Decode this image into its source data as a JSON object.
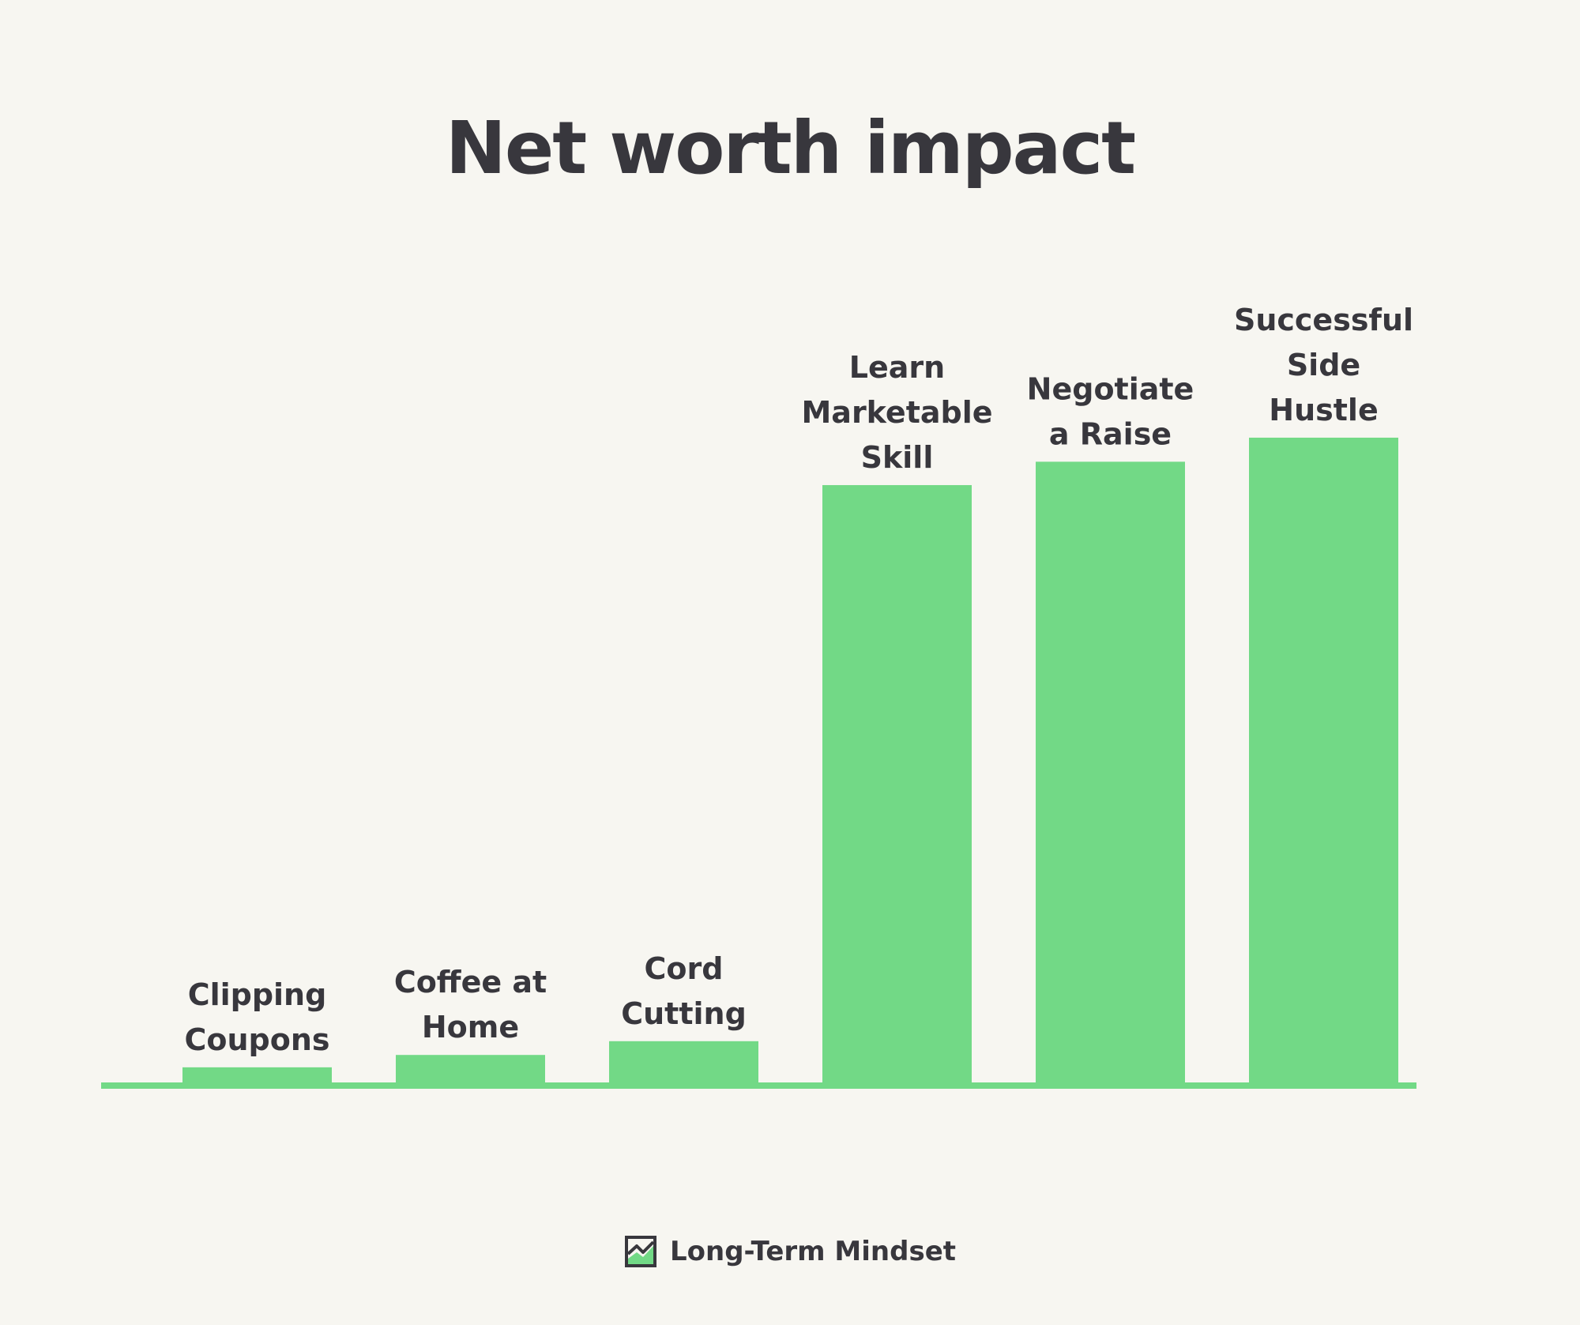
{
  "chart_data": {
    "type": "bar",
    "title": "Net worth impact",
    "xlabel": "",
    "ylabel": "",
    "ylim": [
      0,
      100
    ],
    "categories": [
      [
        "Clipping",
        "Coupons"
      ],
      [
        "Coffee at",
        "Home"
      ],
      [
        "Cord",
        "Cutting"
      ],
      [
        "Learn",
        "Marketable",
        "Skill"
      ],
      [
        "Negotiate",
        "a Raise"
      ],
      [
        "Successful",
        "Side",
        "Hustle"
      ]
    ],
    "values": [
      2.2,
      4.0,
      6.0,
      86.9,
      90.3,
      93.8
    ],
    "grid": false,
    "legend": "none",
    "bar_color": "#72d986",
    "baseline_color": "#72d986"
  },
  "footer": {
    "brand": "Long-Term Mindset",
    "icon": "chart-logo-icon"
  },
  "colors": {
    "background": "#f7f6f1",
    "text": "#38373d",
    "accent": "#72d986"
  }
}
